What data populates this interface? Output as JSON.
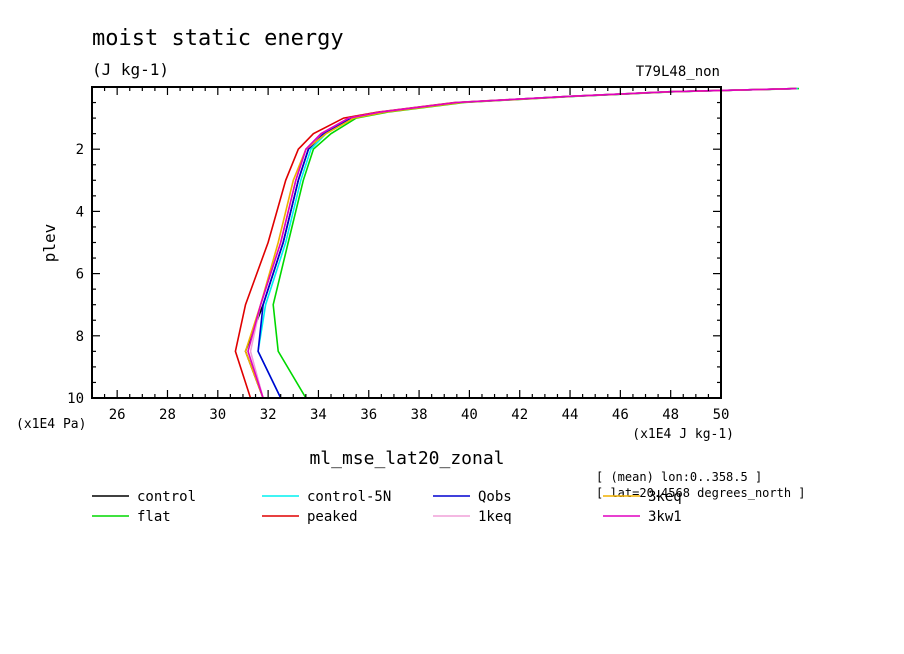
{
  "chart_data": {
    "type": "line",
    "title": "moist static energy",
    "units": "(J kg-1)",
    "experiment": "T79L48_non",
    "ylabel": "plev",
    "y_unit_label": "(x1E4 Pa)",
    "x_unit_label": "(x1E4 J kg-1)",
    "xlabel": "ml_mse_lat20_zonal",
    "info_lines": [
      "[ (mean) lon:0..358.5 ]",
      "[ lat=20.4568 degrees_north ]"
    ],
    "xlim": [
      25,
      50
    ],
    "ylim": [
      10,
      0
    ],
    "y_inverted": true,
    "x_ticks": [
      26,
      28,
      30,
      32,
      34,
      36,
      38,
      40,
      42,
      44,
      46,
      48,
      50
    ],
    "y_ticks": [
      2,
      4,
      6,
      8,
      10
    ],
    "grid": false,
    "legend_position": "bottom",
    "series": [
      {
        "name": "control",
        "color": "#000000",
        "points": [
          [
            31.8,
            10
          ],
          [
            31.1,
            8.5
          ],
          [
            31.8,
            7
          ],
          [
            32.6,
            5
          ],
          [
            33.2,
            3
          ],
          [
            33.6,
            2
          ],
          [
            34.2,
            1.5
          ],
          [
            35.2,
            1
          ],
          [
            36.5,
            0.8
          ],
          [
            39.5,
            0.5
          ],
          [
            44,
            0.3
          ],
          [
            48,
            0.15
          ],
          [
            53,
            0.05
          ]
        ]
      },
      {
        "name": "flat",
        "color": "#00d800",
        "points": [
          [
            33.5,
            10
          ],
          [
            32.4,
            8.5
          ],
          [
            32.2,
            7
          ],
          [
            32.8,
            5
          ],
          [
            33.4,
            3
          ],
          [
            33.8,
            2
          ],
          [
            34.5,
            1.5
          ],
          [
            35.5,
            1
          ],
          [
            36.8,
            0.8
          ],
          [
            39.8,
            0.5
          ],
          [
            44.2,
            0.3
          ],
          [
            48.2,
            0.15
          ],
          [
            53.1,
            0.05
          ]
        ]
      },
      {
        "name": "control-5N",
        "color": "#00f0f0",
        "points": [
          [
            32.5,
            10
          ],
          [
            31.6,
            8.5
          ],
          [
            31.9,
            7
          ],
          [
            32.7,
            5
          ],
          [
            33.3,
            3
          ],
          [
            33.7,
            2
          ],
          [
            34.3,
            1.5
          ],
          [
            35.3,
            1
          ],
          [
            36.6,
            0.8
          ],
          [
            39.6,
            0.5
          ],
          [
            44.1,
            0.3
          ],
          [
            48.1,
            0.15
          ],
          [
            53.05,
            0.05
          ]
        ]
      },
      {
        "name": "peaked",
        "color": "#e00000",
        "points": [
          [
            31.3,
            10
          ],
          [
            30.7,
            8.5
          ],
          [
            31.1,
            7
          ],
          [
            32.0,
            5
          ],
          [
            32.7,
            3
          ],
          [
            33.2,
            2
          ],
          [
            33.8,
            1.5
          ],
          [
            35.0,
            1
          ],
          [
            36.4,
            0.8
          ],
          [
            39.4,
            0.5
          ],
          [
            44,
            0.3
          ],
          [
            48,
            0.15
          ],
          [
            53,
            0.05
          ]
        ]
      },
      {
        "name": "Qobs",
        "color": "#0000d0",
        "points": [
          [
            32.5,
            10
          ],
          [
            31.6,
            8.5
          ],
          [
            31.8,
            7
          ],
          [
            32.6,
            5
          ],
          [
            33.2,
            3
          ],
          [
            33.6,
            2
          ],
          [
            34.2,
            1.5
          ],
          [
            35.3,
            1
          ],
          [
            36.6,
            0.8
          ],
          [
            39.6,
            0.5
          ],
          [
            44.1,
            0.3
          ],
          [
            48.1,
            0.15
          ],
          [
            53,
            0.05
          ]
        ]
      },
      {
        "name": "1keq",
        "color": "#f0a0d8",
        "points": [
          [
            31.8,
            10
          ],
          [
            31.3,
            8.5
          ],
          [
            31.7,
            7
          ],
          [
            32.5,
            5
          ],
          [
            33.1,
            3
          ],
          [
            33.5,
            2
          ],
          [
            34.1,
            1.5
          ],
          [
            35.2,
            1
          ],
          [
            36.5,
            0.8
          ],
          [
            39.5,
            0.5
          ],
          [
            44,
            0.3
          ],
          [
            48,
            0.15
          ],
          [
            53,
            0.05
          ]
        ]
      },
      {
        "name": "3keq",
        "color": "#f0b000",
        "points": [
          [
            31.8,
            10
          ],
          [
            31.1,
            8.5
          ],
          [
            31.7,
            7
          ],
          [
            32.4,
            5
          ],
          [
            33.0,
            3
          ],
          [
            33.5,
            2
          ],
          [
            34.3,
            1.5
          ],
          [
            35.4,
            1
          ],
          [
            36.7,
            0.8
          ],
          [
            39.7,
            0.5
          ],
          [
            44.1,
            0.3
          ],
          [
            48.1,
            0.15
          ],
          [
            53,
            0.05
          ]
        ]
      },
      {
        "name": "3kw1",
        "color": "#e000c0",
        "points": [
          [
            31.8,
            10
          ],
          [
            31.2,
            8.5
          ],
          [
            31.7,
            7
          ],
          [
            32.5,
            5
          ],
          [
            33.1,
            3
          ],
          [
            33.5,
            2
          ],
          [
            34.1,
            1.5
          ],
          [
            35.2,
            1
          ],
          [
            36.5,
            0.8
          ],
          [
            39.5,
            0.5
          ],
          [
            44,
            0.3
          ],
          [
            48,
            0.15
          ],
          [
            53,
            0.05
          ]
        ]
      }
    ]
  }
}
